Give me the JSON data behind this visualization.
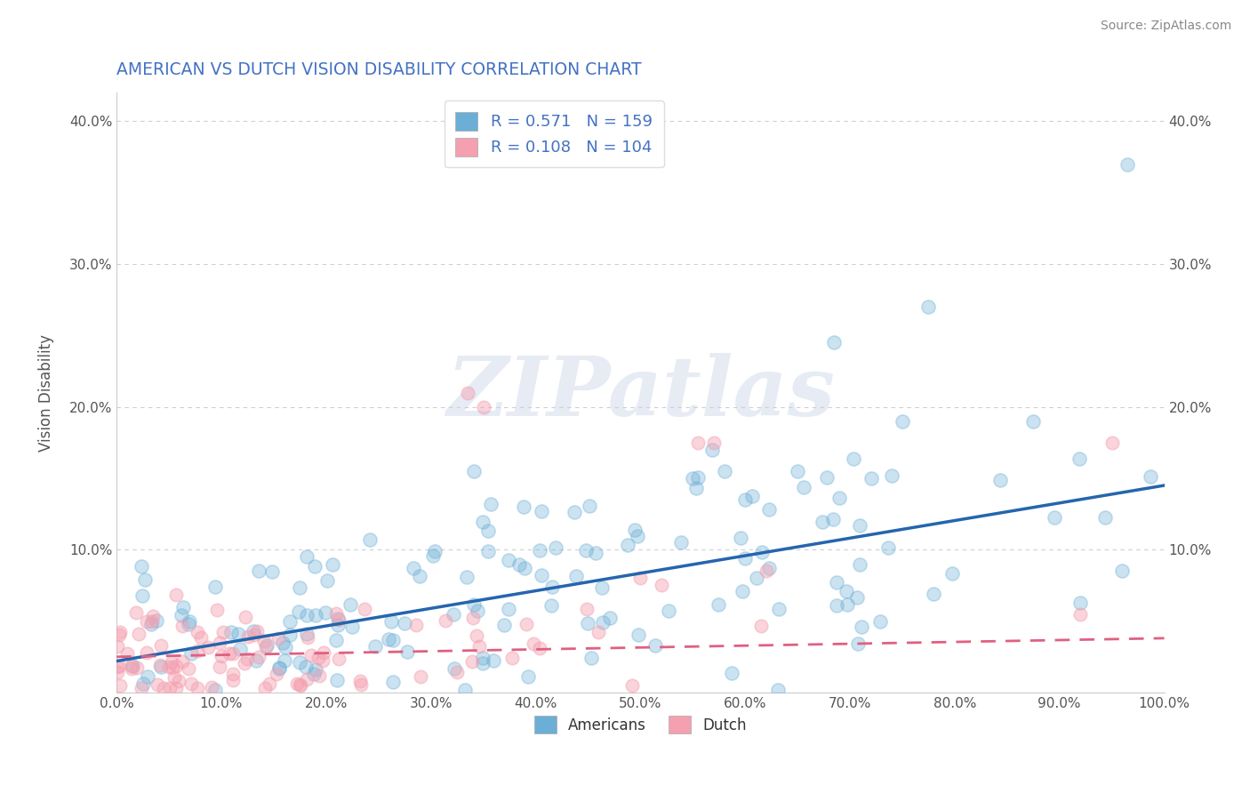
{
  "title": "AMERICAN VS DUTCH VISION DISABILITY CORRELATION CHART",
  "source": "Source: ZipAtlas.com",
  "ylabel": "Vision Disability",
  "xlim": [
    0,
    1.0
  ],
  "ylim": [
    0,
    0.42
  ],
  "xtick_labels": [
    "0.0%",
    "10.0%",
    "20.0%",
    "30.0%",
    "40.0%",
    "50.0%",
    "60.0%",
    "70.0%",
    "80.0%",
    "90.0%",
    "100.0%"
  ],
  "ytick_labels": [
    "",
    "10.0%",
    "20.0%",
    "30.0%",
    "40.0%"
  ],
  "ytick_values": [
    0.0,
    0.1,
    0.2,
    0.3,
    0.4
  ],
  "xtick_values": [
    0.0,
    0.1,
    0.2,
    0.3,
    0.4,
    0.5,
    0.6,
    0.7,
    0.8,
    0.9,
    1.0
  ],
  "american_color": "#6baed6",
  "dutch_color": "#f4a0b0",
  "american_line_color": "#2565ae",
  "dutch_line_color": "#e06080",
  "american_R": 0.571,
  "american_N": 159,
  "dutch_R": 0.108,
  "dutch_N": 104,
  "legend_text_color": "#4472c4",
  "grid_color": "#bbbbbb",
  "background_color": "#ffffff",
  "title_color": "#4472c4",
  "watermark_text": "ZIPatlas",
  "am_line_start_y": 0.022,
  "am_line_end_y": 0.145,
  "du_line_start_y": 0.025,
  "du_line_end_y": 0.038
}
